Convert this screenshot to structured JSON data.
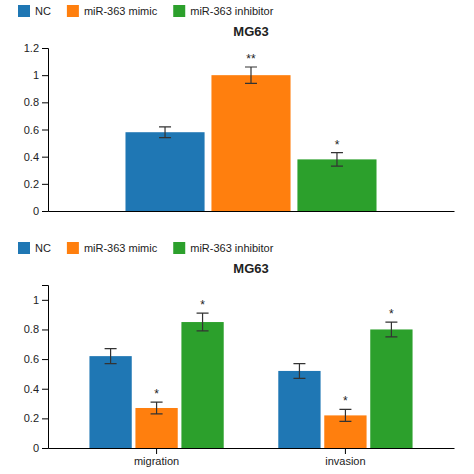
{
  "chart_data": [
    {
      "type": "bar",
      "title": "MG63",
      "categories": [
        null
      ],
      "series": [
        {
          "name": "NC",
          "values": [
            0.58
          ],
          "errors": [
            0.04
          ],
          "annotations": [
            null
          ]
        },
        {
          "name": "miR-363 mimic",
          "values": [
            1.0
          ],
          "errors": [
            0.06
          ],
          "annotations": [
            "**"
          ]
        },
        {
          "name": "miR-363 inhibitor",
          "values": [
            0.38
          ],
          "errors": [
            0.05
          ],
          "annotations": [
            "*"
          ]
        }
      ],
      "ylim": [
        0,
        1.2
      ],
      "yticks": [
        0,
        0.2,
        0.4,
        0.6,
        0.8,
        1,
        1.2
      ],
      "grid": false,
      "legend": "upper left",
      "tick_labels": "y"
    },
    {
      "type": "bar",
      "title": "MG63",
      "categories": [
        "migration",
        "invasion"
      ],
      "series": [
        {
          "name": "NC",
          "values": [
            0.62,
            0.52
          ],
          "errors": [
            0.05,
            0.05
          ],
          "annotations": [
            null,
            null
          ]
        },
        {
          "name": "miR-363 mimic",
          "values": [
            0.27,
            0.22
          ],
          "errors": [
            0.04,
            0.04
          ],
          "annotations": [
            "*",
            "*"
          ]
        },
        {
          "name": "miR-363 inhibitor",
          "values": [
            0.85,
            0.8
          ],
          "errors": [
            0.06,
            0.05
          ],
          "annotations": [
            "*",
            "*"
          ]
        }
      ],
      "ylim": [
        0,
        1.1
      ],
      "yticks": [
        0,
        0.2,
        0.4,
        0.6,
        0.8,
        1
      ],
      "grid": false,
      "legend": "upper left"
    }
  ]
}
